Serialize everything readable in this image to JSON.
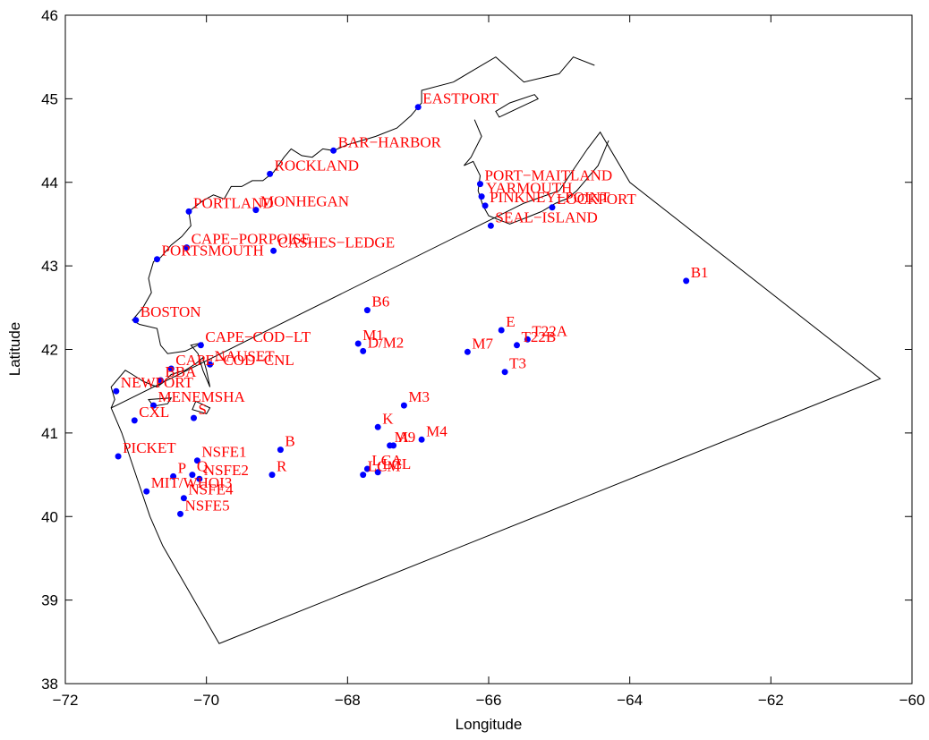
{
  "chart_data": {
    "type": "scatter",
    "title": "",
    "xlabel": "Longitude",
    "ylabel": "Latitude",
    "xlim": [
      -72,
      -60
    ],
    "ylim": [
      38,
      46
    ],
    "xticks": [
      -72,
      -70,
      -68,
      -66,
      -64,
      -62,
      -60
    ],
    "yticks": [
      38,
      39,
      40,
      41,
      42,
      43,
      44,
      45,
      46
    ],
    "xtick_labels": [
      "−72",
      "−70",
      "−68",
      "−66",
      "−64",
      "−62",
      "−60"
    ],
    "ytick_labels": [
      "38",
      "39",
      "40",
      "41",
      "42",
      "43",
      "44",
      "45",
      "46"
    ],
    "grid": false,
    "colors": {
      "marker": "#0000ff",
      "label": "#ff0000",
      "coast": "#000000",
      "boundary": "#000000"
    },
    "stations": [
      {
        "name": "EASTPORT",
        "x": -67.0,
        "y": 44.9
      },
      {
        "name": "BAR−HARBOR",
        "x": -68.2,
        "y": 44.38
      },
      {
        "name": "ROCKLAND",
        "x": -69.1,
        "y": 44.1
      },
      {
        "name": "PORTLAND",
        "x": -70.25,
        "y": 43.65
      },
      {
        "name": "MONHEGAN",
        "x": -69.3,
        "y": 43.67
      },
      {
        "name": "CAPE−PORPOISE",
        "x": -70.28,
        "y": 43.22
      },
      {
        "name": "CASHES−LEDGE",
        "x": -69.05,
        "y": 43.18
      },
      {
        "name": "PORTSMOUTH",
        "x": -70.7,
        "y": 43.08
      },
      {
        "name": "BOSTON",
        "x": -71.0,
        "y": 42.35
      },
      {
        "name": "CAPE−COD−LT",
        "x": -70.08,
        "y": 42.05
      },
      {
        "name": "CAPE−COD−CNL",
        "x": -70.5,
        "y": 41.77
      },
      {
        "name": "NAUSET",
        "x": -69.95,
        "y": 41.82
      },
      {
        "name": "BBA",
        "x": -70.65,
        "y": 41.63
      },
      {
        "name": "NEWPORT",
        "x": -71.28,
        "y": 41.5
      },
      {
        "name": "MENEMSHA",
        "x": -70.75,
        "y": 41.33
      },
      {
        "name": "S",
        "x": -70.18,
        "y": 41.18
      },
      {
        "name": "CXL",
        "x": -71.02,
        "y": 41.15
      },
      {
        "name": "PICKET",
        "x": -71.25,
        "y": 40.72
      },
      {
        "name": "NSFE1",
        "x": -70.13,
        "y": 40.67
      },
      {
        "name": "B",
        "x": -68.95,
        "y": 40.8
      },
      {
        "name": "P",
        "x": -70.47,
        "y": 40.48
      },
      {
        "name": "Q",
        "x": -70.2,
        "y": 40.5
      },
      {
        "name": "NSFE2",
        "x": -70.1,
        "y": 40.45
      },
      {
        "name": "MIT/WHOI3",
        "x": -70.85,
        "y": 40.3
      },
      {
        "name": "NSFE4",
        "x": -70.32,
        "y": 40.22
      },
      {
        "name": "NSFE5",
        "x": -70.37,
        "y": 40.03
      },
      {
        "name": "R",
        "x": -69.07,
        "y": 40.5
      },
      {
        "name": "B6",
        "x": -67.72,
        "y": 42.47
      },
      {
        "name": "M1",
        "x": -67.85,
        "y": 42.07
      },
      {
        "name": "D/M2",
        "x": -67.78,
        "y": 41.98
      },
      {
        "name": "M3",
        "x": -67.2,
        "y": 41.33
      },
      {
        "name": "K",
        "x": -67.57,
        "y": 41.07
      },
      {
        "name": "M9",
        "x": -67.4,
        "y": 40.85
      },
      {
        "name": "A",
        "x": -67.35,
        "y": 40.85
      },
      {
        "name": "M4",
        "x": -66.95,
        "y": 40.92
      },
      {
        "name": "LCA",
        "x": -67.72,
        "y": 40.57
      },
      {
        "name": "LCL",
        "x": -67.57,
        "y": 40.53
      },
      {
        "name": "LCM",
        "x": -67.78,
        "y": 40.5
      },
      {
        "name": "M7",
        "x": -66.3,
        "y": 41.97
      },
      {
        "name": "E",
        "x": -65.82,
        "y": 42.23
      },
      {
        "name": "T22A",
        "x": -65.45,
        "y": 42.12
      },
      {
        "name": "T22B",
        "x": -65.6,
        "y": 42.05
      },
      {
        "name": "T3",
        "x": -65.77,
        "y": 41.73
      },
      {
        "name": "PORT−MAITLAND",
        "x": -66.12,
        "y": 43.98
      },
      {
        "name": "YARMOUTH",
        "x": -66.1,
        "y": 43.83
      },
      {
        "name": "PINKNEY−POINT",
        "x": -66.05,
        "y": 43.72
      },
      {
        "name": "LOCKPORT",
        "x": -65.1,
        "y": 43.7
      },
      {
        "name": "SEAL−ISLAND",
        "x": -65.97,
        "y": 43.48
      },
      {
        "name": "B1",
        "x": -63.2,
        "y": 42.82
      }
    ],
    "domain_boundary": [
      [
        -71.35,
        41.3
      ],
      [
        -71.2,
        41.0
      ],
      [
        -71.0,
        40.5
      ],
      [
        -70.8,
        40.0
      ],
      [
        -70.62,
        39.65
      ],
      [
        -69.82,
        38.48
      ],
      [
        -60.45,
        41.65
      ],
      [
        -64.0,
        44.0
      ],
      [
        -64.42,
        44.6
      ],
      [
        -64.6,
        44.4
      ],
      [
        -65.0,
        43.9
      ],
      [
        -65.5,
        43.75
      ]
    ],
    "coastline_mainland": [
      [
        -71.35,
        41.3
      ],
      [
        -71.3,
        41.4
      ],
      [
        -71.35,
        41.55
      ],
      [
        -71.15,
        41.75
      ],
      [
        -71.05,
        41.7
      ],
      [
        -70.9,
        41.62
      ],
      [
        -70.7,
        41.55
      ],
      [
        -70.62,
        41.6
      ],
      [
        -70.5,
        41.7
      ],
      [
        -70.3,
        41.75
      ],
      [
        -70.15,
        41.83
      ],
      [
        -70.05,
        41.9
      ],
      [
        -70.0,
        41.75
      ],
      [
        -69.95,
        41.55
      ],
      [
        -70.05,
        41.75
      ],
      [
        -70.12,
        41.95
      ],
      [
        -70.22,
        42.05
      ],
      [
        -70.05,
        42.08
      ],
      [
        -70.3,
        41.98
      ],
      [
        -70.55,
        41.95
      ],
      [
        -70.65,
        42.05
      ],
      [
        -70.7,
        42.25
      ],
      [
        -70.95,
        42.3
      ],
      [
        -71.05,
        42.35
      ],
      [
        -70.9,
        42.5
      ],
      [
        -70.78,
        42.68
      ],
      [
        -70.82,
        42.85
      ],
      [
        -70.75,
        43.05
      ],
      [
        -70.65,
        43.1
      ],
      [
        -70.5,
        43.25
      ],
      [
        -70.35,
        43.35
      ],
      [
        -70.22,
        43.48
      ],
      [
        -70.25,
        43.65
      ],
      [
        -70.05,
        43.78
      ],
      [
        -69.9,
        43.85
      ],
      [
        -69.75,
        43.8
      ],
      [
        -69.65,
        43.95
      ],
      [
        -69.5,
        43.95
      ],
      [
        -69.35,
        44.02
      ],
      [
        -69.2,
        44.02
      ],
      [
        -69.05,
        44.12
      ],
      [
        -68.9,
        44.3
      ],
      [
        -68.8,
        44.4
      ],
      [
        -68.65,
        44.32
      ],
      [
        -68.5,
        44.3
      ],
      [
        -68.35,
        44.4
      ],
      [
        -68.2,
        44.38
      ],
      [
        -68.0,
        44.45
      ],
      [
        -67.8,
        44.5
      ],
      [
        -67.6,
        44.55
      ],
      [
        -67.3,
        44.65
      ],
      [
        -67.1,
        44.8
      ],
      [
        -66.95,
        44.95
      ],
      [
        -66.95,
        45.1
      ],
      [
        -66.5,
        45.2
      ],
      [
        -66.2,
        45.35
      ],
      [
        -65.9,
        45.5
      ],
      [
        -65.5,
        45.2
      ],
      [
        -65.0,
        45.3
      ],
      [
        -64.8,
        45.5
      ],
      [
        -64.5,
        45.4
      ]
    ],
    "coastline_nova_scotia": [
      [
        -66.2,
        44.75
      ],
      [
        -66.1,
        44.55
      ],
      [
        -66.25,
        44.3
      ],
      [
        -66.35,
        44.2
      ],
      [
        -66.22,
        44.25
      ],
      [
        -66.12,
        44.08
      ],
      [
        -66.15,
        43.9
      ],
      [
        -66.08,
        43.72
      ],
      [
        -66.0,
        43.6
      ],
      [
        -65.85,
        43.55
      ],
      [
        -65.7,
        43.5
      ],
      [
        -65.55,
        43.55
      ],
      [
        -65.4,
        43.6
      ],
      [
        -65.25,
        43.65
      ],
      [
        -65.05,
        43.75
      ],
      [
        -64.9,
        43.8
      ],
      [
        -64.75,
        43.9
      ],
      [
        -64.6,
        44.05
      ],
      [
        -64.45,
        44.2
      ],
      [
        -64.35,
        44.4
      ],
      [
        -64.3,
        44.5
      ]
    ],
    "annapolis_channel": [
      [
        -65.9,
        44.85
      ],
      [
        -65.7,
        44.95
      ],
      [
        -65.35,
        45.05
      ],
      [
        -65.3,
        45.0
      ],
      [
        -65.6,
        44.88
      ],
      [
        -65.85,
        44.78
      ]
    ],
    "islands": [
      [
        [
          -70.15,
          41.38
        ],
        [
          -69.95,
          41.3
        ],
        [
          -70.0,
          41.23
        ],
        [
          -70.2,
          41.28
        ]
      ],
      [
        [
          -70.82,
          41.4
        ],
        [
          -70.5,
          41.42
        ],
        [
          -70.55,
          41.35
        ],
        [
          -70.75,
          41.32
        ]
      ]
    ]
  }
}
